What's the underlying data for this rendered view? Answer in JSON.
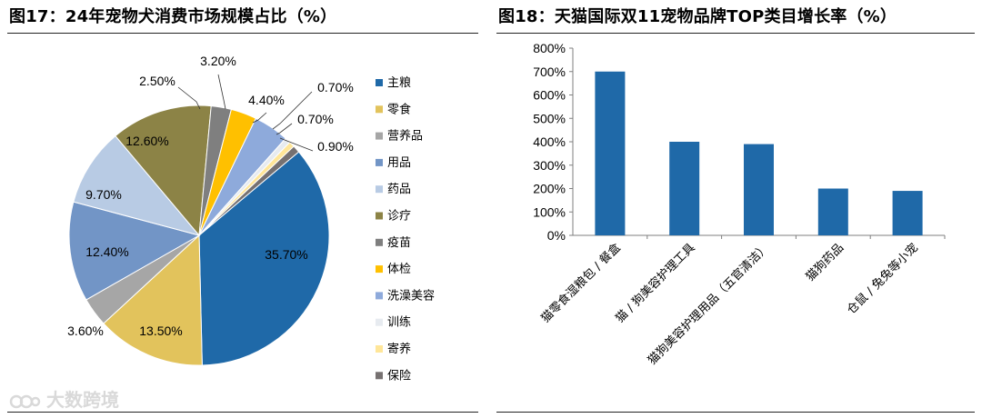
{
  "left": {
    "title": "图17：24年宠物犬消费市场规模占比（%）"
  },
  "right": {
    "title": "图18：天猫国际双11宠物品牌TOP类目增长率（%）"
  },
  "watermark": "大数跨境",
  "chart_data": [
    {
      "type": "pie",
      "title": "24年宠物犬消费市场规模占比（%）",
      "legend_position": "right",
      "slices": [
        {
          "name": "主粮",
          "value": 35.7,
          "label": "35.70%",
          "color": "#1f69a8"
        },
        {
          "name": "零食",
          "value": 13.5,
          "label": "13.50%",
          "color": "#e2c35c"
        },
        {
          "name": "营养品",
          "value": 3.6,
          "label": "3.60%",
          "color": "#a6a6a6"
        },
        {
          "name": "用品",
          "value": 12.4,
          "label": "12.40%",
          "color": "#7295c6"
        },
        {
          "name": "药品",
          "value": 9.7,
          "label": "9.70%",
          "color": "#b8cbe4"
        },
        {
          "name": "诊疗",
          "value": 12.6,
          "label": "12.60%",
          "color": "#8c8346"
        },
        {
          "name": "疫苗",
          "value": 2.5,
          "label": "2.50%",
          "color": "#7f7f7f"
        },
        {
          "name": "体检",
          "value": 3.2,
          "label": "3.20%",
          "color": "#ffc000"
        },
        {
          "name": "洗澡美容",
          "value": 4.4,
          "label": "4.40%",
          "color": "#8eaadb"
        },
        {
          "name": "训练",
          "value": 0.7,
          "label": "0.70%",
          "color": "#e7ebf0"
        },
        {
          "name": "寄养",
          "value": 0.7,
          "label": "0.70%",
          "color": "#ffe699"
        },
        {
          "name": "保险",
          "value": 0.9,
          "label": "0.90%",
          "color": "#767171"
        }
      ]
    },
    {
      "type": "bar",
      "title": "天猫国际双11宠物品牌TOP类目增长率（%）",
      "categories": [
        "猫零食湿粮包 / 餐盒",
        "猫 / 狗美容护理工具",
        "猫狗美容护理用品（五官清洁）",
        "猫狗药品",
        "仓鼠 / 兔兔等小宠"
      ],
      "values": [
        700,
        400,
        390,
        200,
        190
      ],
      "ylim": [
        0,
        800
      ],
      "yticks": [
        "0%",
        "100%",
        "200%",
        "300%",
        "400%",
        "500%",
        "600%",
        "700%",
        "800%"
      ],
      "bar_color": "#1f69a8",
      "grid": false
    }
  ]
}
